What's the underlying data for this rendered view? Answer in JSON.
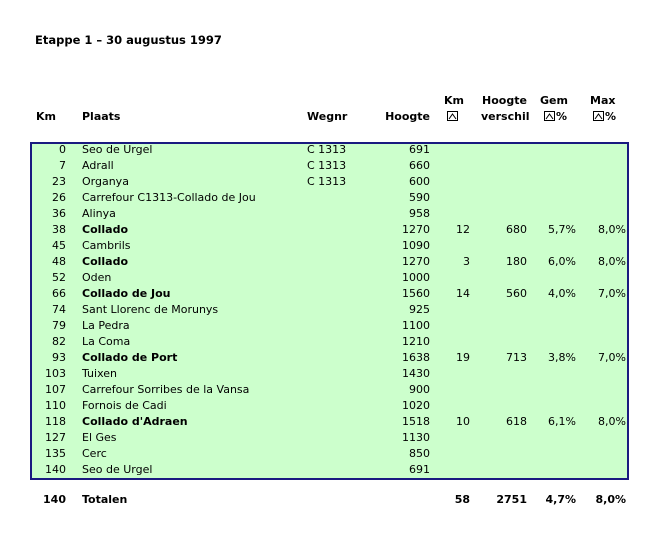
{
  "title": "Etappe 1 – 30 augustus 1997",
  "header": {
    "km": "Km",
    "plaats": "Plaats",
    "wegnr": "Wegnr",
    "hoogte": "Hoogte",
    "km_klim": "Km",
    "verschil_1": "Hoogte",
    "verschil_2": "verschil",
    "gem": "Gem",
    "gem_unit": "%",
    "max": "Max",
    "max_unit": "%"
  },
  "rows": [
    {
      "km": 0,
      "plaats": "Seo de Urgel",
      "wegnr": "C 1313",
      "hoogte": 691
    },
    {
      "km": 7,
      "plaats": "Adrall",
      "wegnr": "C 1313",
      "hoogte": 660
    },
    {
      "km": 23,
      "plaats": "Organya",
      "wegnr": "C 1313",
      "hoogte": 600
    },
    {
      "km": 26,
      "plaats": "Carrefour C1313-Collado de Jou",
      "hoogte": 590
    },
    {
      "km": 36,
      "plaats": "Alinya",
      "hoogte": 958
    },
    {
      "km": 38,
      "plaats": "Collado",
      "hoogte": 1270,
      "km_klim": 12,
      "verschil": 680,
      "gem": "5,7%",
      "max": "8,0%",
      "bold": true
    },
    {
      "km": 45,
      "plaats": "Cambrils",
      "hoogte": 1090
    },
    {
      "km": 48,
      "plaats": "Collado",
      "hoogte": 1270,
      "km_klim": 3,
      "verschil": 180,
      "gem": "6,0%",
      "max": "8,0%",
      "bold": true
    },
    {
      "km": 52,
      "plaats": "Oden",
      "hoogte": 1000
    },
    {
      "km": 66,
      "plaats": "Collado de Jou",
      "hoogte": 1560,
      "km_klim": 14,
      "verschil": 560,
      "gem": "4,0%",
      "max": "7,0%",
      "bold": true
    },
    {
      "km": 74,
      "plaats": "Sant Llorenc de Morunys",
      "hoogte": 925
    },
    {
      "km": 79,
      "plaats": "La Pedra",
      "hoogte": 1100
    },
    {
      "km": 82,
      "plaats": "La Coma",
      "hoogte": 1210
    },
    {
      "km": 93,
      "plaats": "Collado de Port",
      "hoogte": 1638,
      "km_klim": 19,
      "verschil": 713,
      "gem": "3,8%",
      "max": "7,0%",
      "bold": true
    },
    {
      "km": 103,
      "plaats": "Tuixen",
      "hoogte": 1430
    },
    {
      "km": 107,
      "plaats": "Carrefour Sorribes de la Vansa",
      "hoogte": 900
    },
    {
      "km": 110,
      "plaats": "Fornois de Cadi",
      "hoogte": 1020
    },
    {
      "km": 118,
      "plaats": "Collado d'Adraen",
      "hoogte": 1518,
      "km_klim": 10,
      "verschil": 618,
      "gem": "6,1%",
      "max": "8,0%",
      "bold": true
    },
    {
      "km": 127,
      "plaats": "El Ges",
      "hoogte": 1130
    },
    {
      "km": 135,
      "plaats": "Cerc",
      "hoogte": 850
    },
    {
      "km": 140,
      "plaats": "Seo de Urgel",
      "hoogte": 691
    }
  ],
  "totals": {
    "km": 140,
    "plaats": "Totalen",
    "km_klim": 58,
    "verschil": 2751,
    "gem": "4,7%",
    "max": "8,0%"
  }
}
